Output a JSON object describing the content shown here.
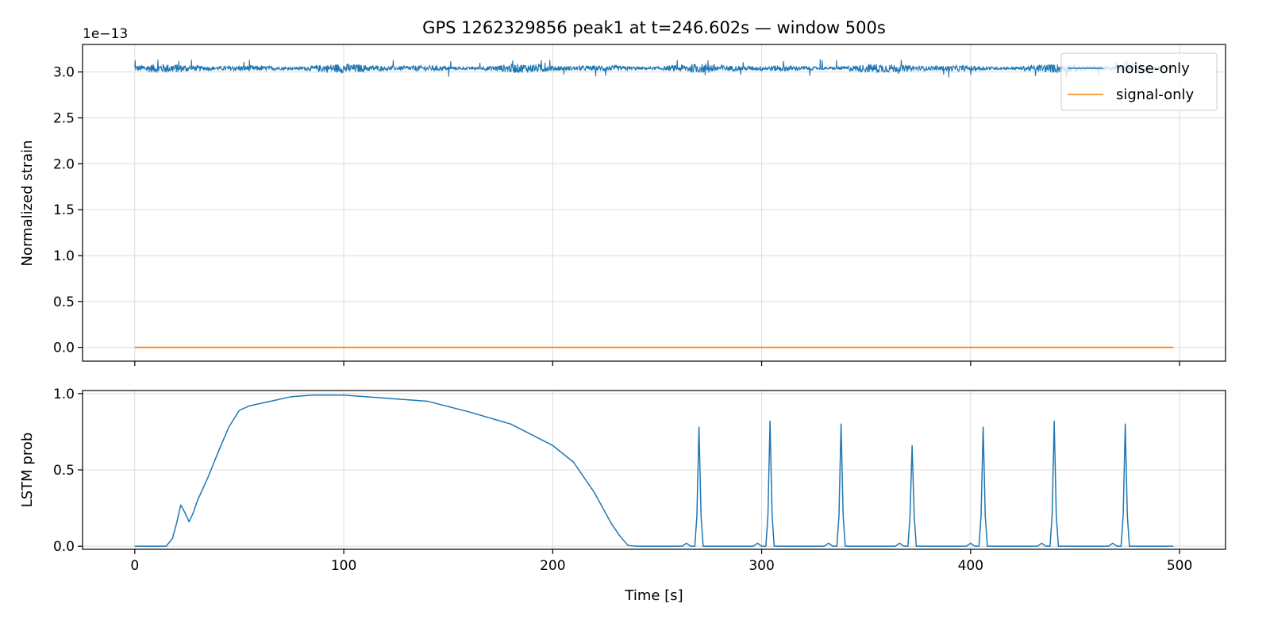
{
  "chart_data": {
    "title": "GPS 1262329856 peak1 at t=246.602s — window 500s",
    "xlabel": "Time [s]",
    "x_ticks": [
      0,
      100,
      200,
      300,
      400,
      500
    ],
    "xlim": [
      -25,
      522
    ],
    "colors": {
      "noise": "#1f77b4",
      "signal": "#ff7f0e",
      "grid": "#dcdcdc"
    },
    "panels": [
      {
        "type": "line",
        "ylabel": "Normalized strain",
        "offset_label": "1e−13",
        "ylim": [
          -0.15,
          3.3
        ],
        "y_ticks": [
          0.0,
          0.5,
          1.0,
          1.5,
          2.0,
          2.5,
          3.0
        ],
        "y_tick_labels": [
          "0.0",
          "0.5",
          "1.0",
          "1.5",
          "2.0",
          "2.5",
          "3.0"
        ],
        "grid": true,
        "legend": {
          "placement": "top-right",
          "entries": [
            "noise-only",
            "signal-only"
          ]
        },
        "series": [
          {
            "name": "noise-only",
            "kind": "noise-band",
            "x_range": [
              0,
              497
            ],
            "center": 3.04,
            "typical_amplitude": 0.05,
            "max_amplitude": 0.1
          },
          {
            "name": "signal-only",
            "x": [
              0,
              497
            ],
            "y": [
              0.0,
              0.0
            ]
          }
        ]
      },
      {
        "type": "line",
        "ylabel": "LSTM prob",
        "ylim": [
          -0.02,
          1.02
        ],
        "y_ticks": [
          0.0,
          0.5,
          1.0
        ],
        "y_tick_labels": [
          "0.0",
          "0.5",
          "1.0"
        ],
        "grid": true,
        "series": [
          {
            "x": [
              0,
              15,
              18,
              20,
              22,
              24,
              26,
              28,
              30,
              35,
              40,
              45,
              50,
              55,
              65,
              75,
              85,
              100,
              120,
              140,
              160,
              180,
              200,
              210,
              220,
              228,
              232,
              236,
              240,
              262,
              264,
              266,
              268,
              269,
              270,
              271,
              272,
              274,
              296,
              298,
              300,
              302,
              303,
              304,
              305,
              306,
              308,
              330,
              332,
              334,
              336,
              337,
              338,
              339,
              340,
              342,
              364,
              366,
              368,
              370,
              371,
              372,
              373,
              374,
              376,
              398,
              400,
              402,
              404,
              405,
              406,
              407,
              408,
              410,
              432,
              434,
              436,
              438,
              439,
              440,
              441,
              442,
              444,
              466,
              468,
              470,
              472,
              473,
              474,
              475,
              476,
              478,
              497
            ],
            "y": [
              0.0,
              0.0,
              0.05,
              0.15,
              0.27,
              0.22,
              0.16,
              0.22,
              0.3,
              0.45,
              0.62,
              0.78,
              0.89,
              0.92,
              0.95,
              0.98,
              0.99,
              0.99,
              0.97,
              0.95,
              0.88,
              0.8,
              0.66,
              0.55,
              0.35,
              0.15,
              0.07,
              0.005,
              0.0,
              0.0,
              0.02,
              0.0,
              0.0,
              0.2,
              0.78,
              0.2,
              0.0,
              0.0,
              0.0,
              0.02,
              0.0,
              0.0,
              0.2,
              0.82,
              0.2,
              0.0,
              0.0,
              0.0,
              0.02,
              0.0,
              0.0,
              0.2,
              0.8,
              0.2,
              0.0,
              0.0,
              0.0,
              0.02,
              0.0,
              0.0,
              0.2,
              0.66,
              0.2,
              0.0,
              0.0,
              0.0,
              0.02,
              0.0,
              0.0,
              0.2,
              0.78,
              0.2,
              0.0,
              0.0,
              0.0,
              0.02,
              0.0,
              0.0,
              0.2,
              0.82,
              0.2,
              0.0,
              0.0,
              0.0,
              0.02,
              0.0,
              0.0,
              0.2,
              0.8,
              0.2,
              0.0,
              0.0,
              0.0
            ]
          }
        ]
      }
    ]
  }
}
